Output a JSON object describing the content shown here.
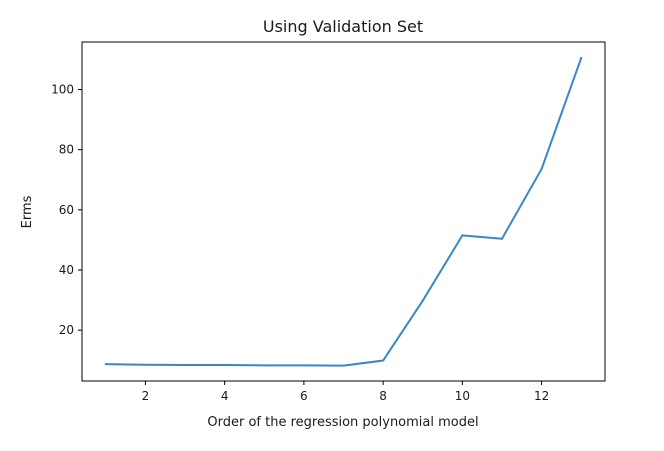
{
  "chart_data": {
    "type": "line",
    "title": "Using Validation Set",
    "xlabel": "Order of the regression polynomial model",
    "ylabel": "Erms",
    "xlim": [
      0.4,
      13.6
    ],
    "ylim": [
      3.1,
      115.8
    ],
    "x_ticks": [
      2,
      4,
      6,
      8,
      10,
      12
    ],
    "y_ticks": [
      20,
      40,
      60,
      80,
      100
    ],
    "grid": false,
    "series": [
      {
        "color": "#3a87c6",
        "x": [
          1,
          2,
          3,
          4,
          5,
          6,
          7,
          8,
          9,
          10,
          11,
          12,
          13
        ],
        "y": [
          8.7,
          8.5,
          8.4,
          8.4,
          8.3,
          8.3,
          8.2,
          9.9,
          29.8,
          51.5,
          50.4,
          73.6,
          110.5
        ]
      }
    ]
  }
}
